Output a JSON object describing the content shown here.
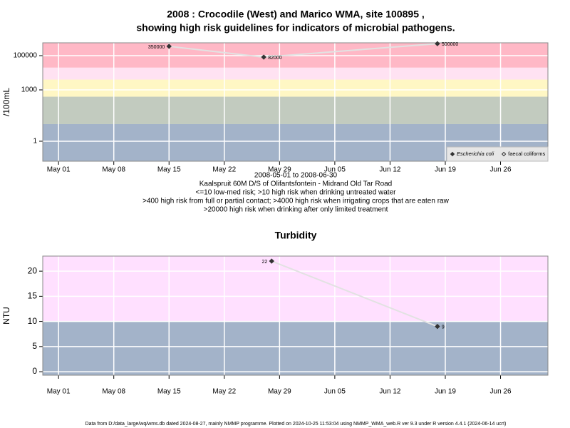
{
  "chart_data": [
    {
      "type": "scatter-line",
      "title": "2008 : Crocodile (West) and Marico WMA, site 100895 ,",
      "subtitle": "showing high risk guidelines for indicators of microbial pathogens.",
      "y_label": "/100mL",
      "x_label_lines": [
        "2008-05-01 to 2008-06-30",
        "Kaalspruit 60M D/S of Olifantsfontein - Midrand Old Tar Road",
        "<=10 low-med risk; >10 high risk when drinking untreated water",
        ">400 high risk from full or partial contact; >4000 high risk when irrigating crops that are eaten raw",
        ">20000 high risk when drinking after only limited treatment"
      ],
      "ylog": true,
      "ylim": [
        0.068,
        562000
      ],
      "yticks": [
        1,
        1000,
        100000
      ],
      "xlim": [
        "2008-04-29",
        "2008-07-02"
      ],
      "xticks": [
        {
          "value": "2008-05-01",
          "label": "May 01"
        },
        {
          "value": "2008-05-08",
          "label": "May 08"
        },
        {
          "value": "2008-05-15",
          "label": "May 15"
        },
        {
          "value": "2008-05-22",
          "label": "May 22"
        },
        {
          "value": "2008-05-29",
          "label": "May 29"
        },
        {
          "value": "2008-06-05",
          "label": "Jun 05"
        },
        {
          "value": "2008-06-12",
          "label": "Jun 12"
        },
        {
          "value": "2008-06-19",
          "label": "Jun 19"
        },
        {
          "value": "2008-06-26",
          "label": "Jun 26"
        }
      ],
      "band_breaks": [
        10,
        400,
        4000,
        20000
      ],
      "band_colors": [
        "#a3b3c9",
        "#c2cbbf",
        "#fff7c4",
        "#ffe2f2",
        "#ffb8c6"
      ],
      "grid": true,
      "legend": "bottom-right",
      "series": [
        {
          "name": "Escherichia coli",
          "color": "#333333",
          "marker": "filled-diamond",
          "x": [
            "2008-05-15",
            "2008-05-27",
            "2008-06-18"
          ],
          "values": [
            350000,
            82000,
            500000
          ]
        },
        {
          "name": "faecal coliforms",
          "color": "#333333",
          "marker": "open-diamond",
          "x": [],
          "values": []
        }
      ]
    },
    {
      "type": "scatter-line",
      "title": "Turbidity",
      "y_label": "NTU",
      "ylog": false,
      "ylim": [
        -0.7,
        23
      ],
      "yticks": [
        0,
        5,
        10,
        15,
        20
      ],
      "xlim": [
        "2008-04-29",
        "2008-07-02"
      ],
      "xticks": [
        {
          "value": "2008-05-01",
          "label": "May 01"
        },
        {
          "value": "2008-05-08",
          "label": "May 08"
        },
        {
          "value": "2008-05-15",
          "label": "May 15"
        },
        {
          "value": "2008-05-22",
          "label": "May 22"
        },
        {
          "value": "2008-05-29",
          "label": "May 29"
        },
        {
          "value": "2008-06-05",
          "label": "Jun 05"
        },
        {
          "value": "2008-06-12",
          "label": "Jun 12"
        },
        {
          "value": "2008-06-19",
          "label": "Jun 19"
        },
        {
          "value": "2008-06-26",
          "label": "Jun 26"
        }
      ],
      "band_breaks": [
        10
      ],
      "band_colors": [
        "#a3b3c9",
        "#ffe0ff"
      ],
      "grid": true,
      "series": [
        {
          "name": "Turbidity",
          "color": "#333333",
          "marker": "filled-diamond",
          "x": [
            "2008-05-28",
            "2008-06-18"
          ],
          "values": [
            22,
            9
          ]
        }
      ]
    }
  ],
  "footer": "Data from D:/data_large/wq/wms.db dated 2024-08-27, mainly NMMP programme. Plotted on 2024-10-25 11:53:04 using NMMP_WMA_web.R ver 9.3 under R version 4.4.1 (2024-06-14 ucrt)"
}
